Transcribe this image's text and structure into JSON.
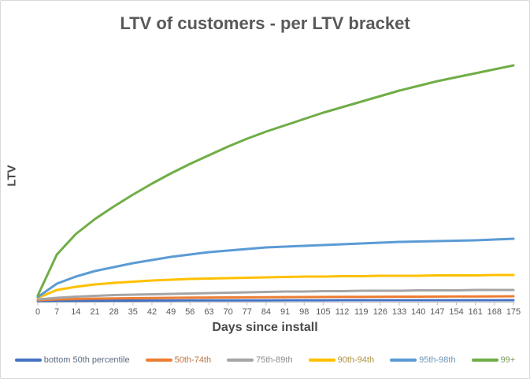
{
  "chart": {
    "title": "LTV of customers - per LTV bracket",
    "x_axis_label": "Days since install",
    "y_axis_label": "LTV",
    "colors": {
      "frame_border": "#d9d9d9",
      "background": "#ffffff",
      "title_text": "#595959",
      "axis_title_text": "#4a4a4a",
      "axis_line": "#bfbfbf",
      "tick_label_text": "#595959"
    }
  },
  "chart_data": {
    "type": "line",
    "title": "LTV of customers - per LTV bracket",
    "xlabel": "Days since install",
    "ylabel": "LTV",
    "x": [
      0,
      7,
      14,
      21,
      28,
      35,
      42,
      49,
      56,
      63,
      70,
      77,
      84,
      91,
      98,
      105,
      112,
      119,
      126,
      133,
      140,
      147,
      154,
      161,
      168,
      175
    ],
    "ylim": [
      0,
      32
    ],
    "y_axis_ticks": "none (y-axis unlabeled in chart; values are relative LTV units)",
    "grid": "off",
    "legend_position": "bottom",
    "series": [
      {
        "name": "bottom 50th percentile",
        "color": "#4472c4",
        "label_color": "#5b6b82",
        "values": [
          0.1,
          0.12,
          0.13,
          0.14,
          0.15,
          0.15,
          0.16,
          0.16,
          0.17,
          0.17,
          0.18,
          0.18,
          0.18,
          0.19,
          0.19,
          0.19,
          0.2,
          0.2,
          0.2,
          0.2,
          0.2,
          0.2,
          0.2,
          0.2,
          0.2,
          0.2
        ]
      },
      {
        "name": "50th-74th",
        "color": "#ed7d31",
        "label_color": "#bd7447",
        "values": [
          0.2,
          0.3,
          0.35,
          0.4,
          0.42,
          0.45,
          0.47,
          0.5,
          0.52,
          0.54,
          0.55,
          0.56,
          0.58,
          0.59,
          0.6,
          0.61,
          0.62,
          0.63,
          0.64,
          0.65,
          0.65,
          0.66,
          0.67,
          0.68,
          0.69,
          0.7
        ]
      },
      {
        "name": "75th-89th",
        "color": "#a5a5a5",
        "label_color": "#8c8c8c",
        "values": [
          0.3,
          0.5,
          0.65,
          0.75,
          0.85,
          0.9,
          0.95,
          1.0,
          1.05,
          1.1,
          1.15,
          1.2,
          1.25,
          1.3,
          1.3,
          1.35,
          1.35,
          1.4,
          1.4,
          1.4,
          1.45,
          1.45,
          1.45,
          1.5,
          1.5,
          1.5
        ]
      },
      {
        "name": "90th-94th",
        "color": "#ffc000",
        "label_color": "#ab9340",
        "values": [
          0.5,
          1.5,
          1.9,
          2.2,
          2.4,
          2.55,
          2.7,
          2.8,
          2.9,
          2.95,
          3.0,
          3.05,
          3.1,
          3.15,
          3.2,
          3.2,
          3.25,
          3.25,
          3.3,
          3.3,
          3.3,
          3.35,
          3.35,
          3.35,
          3.4,
          3.4
        ]
      },
      {
        "name": "95th-98th",
        "color": "#5b9bd5",
        "label_color": "#6d95bb",
        "values": [
          0.6,
          2.3,
          3.2,
          3.9,
          4.4,
          4.9,
          5.3,
          5.7,
          6.0,
          6.3,
          6.5,
          6.7,
          6.9,
          7.0,
          7.1,
          7.2,
          7.3,
          7.4,
          7.5,
          7.6,
          7.65,
          7.7,
          7.75,
          7.8,
          7.9,
          8.0
        ]
      },
      {
        "name": "99+",
        "color": "#70ad47",
        "label_color": "#7e9b63",
        "values": [
          0.8,
          6.0,
          8.6,
          10.5,
          12.1,
          13.6,
          15.0,
          16.3,
          17.5,
          18.6,
          19.7,
          20.7,
          21.6,
          22.4,
          23.2,
          24.0,
          24.7,
          25.4,
          26.1,
          26.8,
          27.4,
          28.0,
          28.5,
          29.0,
          29.5,
          30.0
        ]
      }
    ]
  }
}
